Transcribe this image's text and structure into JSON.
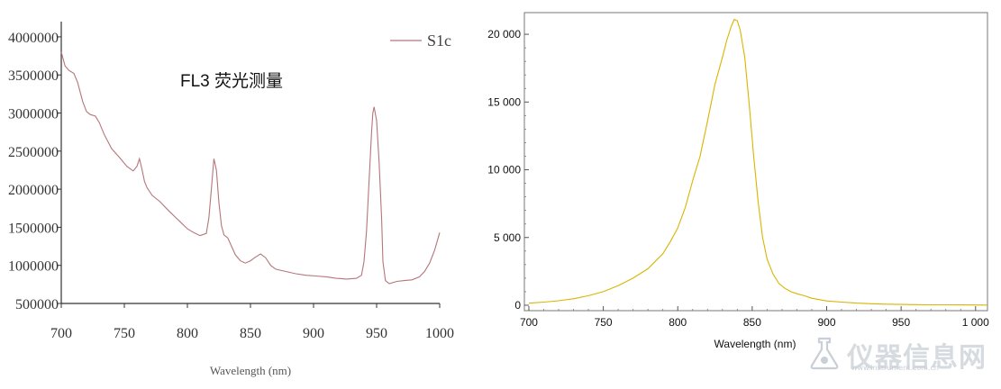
{
  "chart_data": [
    {
      "type": "line",
      "title": "FL3 荧光测量",
      "xlabel": "Wavelength (nm)",
      "ylabel": "",
      "xlim": [
        700,
        1000
      ],
      "ylim": [
        500000,
        4200000
      ],
      "x_ticks": [
        700,
        750,
        800,
        850,
        900,
        950,
        1000
      ],
      "x_tick_labels": [
        "700",
        "750",
        "800",
        "850",
        "900",
        "950",
        "1000"
      ],
      "y_ticks": [
        500000,
        1000000,
        1500000,
        2000000,
        2500000,
        3000000,
        3500000,
        4000000
      ],
      "y_tick_labels": [
        "500000",
        "1000000",
        "1500000",
        "2000000",
        "2500000",
        "3000000",
        "3500000",
        "4000000"
      ],
      "legend_position": "top-right",
      "grid": false,
      "series": [
        {
          "name": "S1c",
          "color": "#b5767a",
          "x": [
            700,
            703,
            706,
            710,
            713,
            717,
            720,
            723,
            727,
            730,
            734,
            740,
            746,
            752,
            757,
            760,
            762,
            764,
            766,
            768,
            772,
            778,
            785,
            790,
            795,
            800,
            805,
            810,
            815,
            817,
            819,
            821,
            823,
            825,
            827,
            829,
            832,
            835,
            838,
            842,
            846,
            850,
            854,
            858,
            862,
            866,
            870,
            878,
            886,
            894,
            902,
            910,
            918,
            926,
            934,
            938,
            940,
            942,
            944,
            946,
            947,
            948,
            950,
            952,
            954,
            955,
            957,
            960,
            966,
            972,
            978,
            984,
            988,
            992,
            996,
            1000
          ],
          "values": [
            3800000,
            3620000,
            3560000,
            3520000,
            3400000,
            3150000,
            3020000,
            2980000,
            2960000,
            2880000,
            2720000,
            2530000,
            2420000,
            2300000,
            2240000,
            2300000,
            2400000,
            2260000,
            2100000,
            2020000,
            1920000,
            1840000,
            1720000,
            1640000,
            1560000,
            1480000,
            1430000,
            1390000,
            1420000,
            1620000,
            2000000,
            2400000,
            2250000,
            1820000,
            1520000,
            1400000,
            1360000,
            1250000,
            1140000,
            1060000,
            1030000,
            1060000,
            1110000,
            1150000,
            1100000,
            1000000,
            950000,
            920000,
            890000,
            870000,
            860000,
            850000,
            830000,
            820000,
            830000,
            870000,
            1050000,
            1450000,
            2100000,
            2750000,
            3000000,
            3080000,
            2900000,
            2350000,
            1600000,
            1050000,
            800000,
            760000,
            790000,
            800000,
            810000,
            850000,
            920000,
            1030000,
            1200000,
            1430000
          ]
        }
      ]
    },
    {
      "type": "line",
      "title": "",
      "xlabel": "Wavelength (nm)",
      "ylabel": "",
      "xlim": [
        697,
        1008
      ],
      "ylim": [
        -400,
        21600
      ],
      "x_ticks": [
        700,
        750,
        800,
        850,
        900,
        950,
        1000
      ],
      "x_tick_labels": [
        "700",
        "750",
        "800",
        "850",
        "900",
        "950",
        "1 000"
      ],
      "y_ticks": [
        0,
        5000,
        10000,
        15000,
        20000
      ],
      "y_tick_labels": [
        "0",
        "5 000",
        "10 000",
        "15 000",
        "20 000"
      ],
      "grid": false,
      "series": [
        {
          "color": "#d9b400",
          "x": [
            700,
            710,
            720,
            730,
            740,
            750,
            760,
            770,
            780,
            790,
            795,
            800,
            805,
            810,
            815,
            820,
            825,
            830,
            833,
            836,
            838,
            840,
            842,
            845,
            848,
            851,
            854,
            857,
            860,
            864,
            868,
            872,
            876,
            880,
            885,
            890,
            900,
            910,
            920,
            930,
            940,
            950,
            960,
            970,
            980,
            990,
            1000,
            1008
          ],
          "values": [
            150,
            230,
            330,
            480,
            700,
            1000,
            1450,
            2000,
            2700,
            3800,
            4700,
            5700,
            7200,
            9200,
            11000,
            13600,
            16300,
            18300,
            19600,
            20600,
            21100,
            21000,
            20300,
            18300,
            14800,
            11000,
            7600,
            5000,
            3400,
            2300,
            1600,
            1250,
            1000,
            850,
            700,
            520,
            320,
            230,
            160,
            110,
            80,
            60,
            45,
            35,
            30,
            25,
            20,
            15
          ]
        }
      ]
    }
  ],
  "watermark": {
    "text": "仪器信息网",
    "subtext": "www.instrument.com.cn"
  }
}
